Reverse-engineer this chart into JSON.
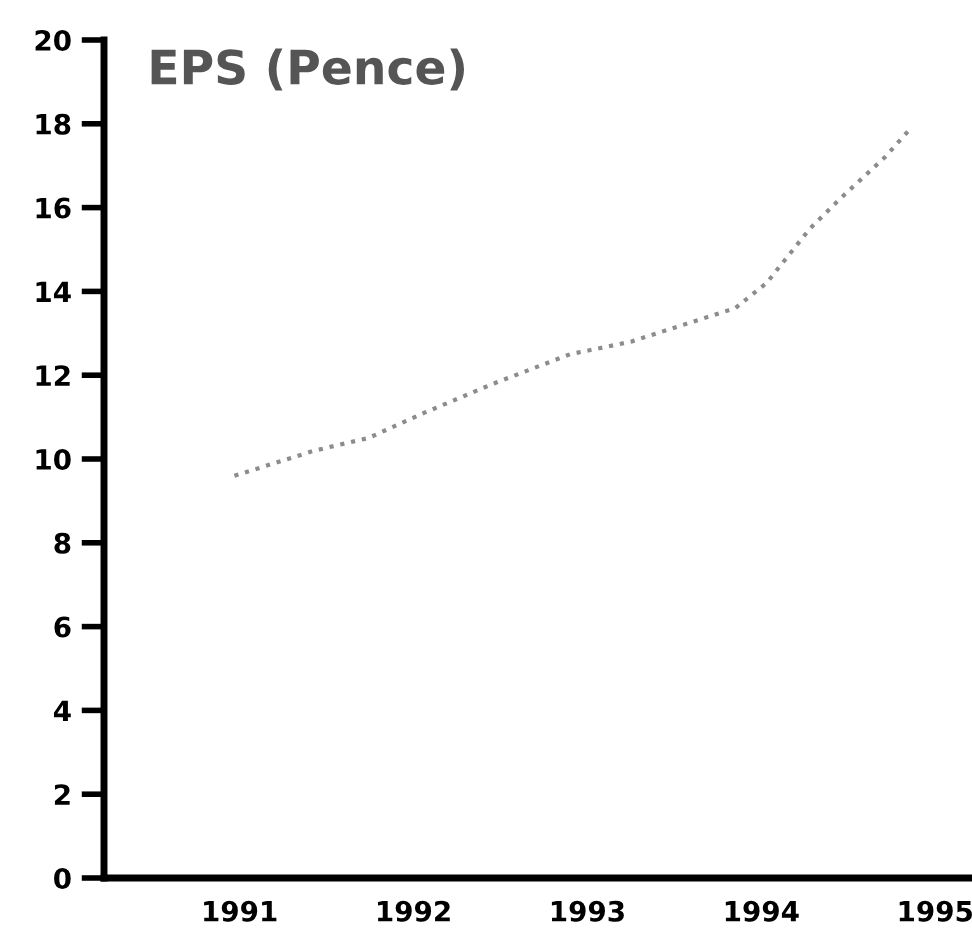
{
  "chart_data": {
    "type": "line",
    "title": "EPS (Pence)",
    "x": [
      1990.97,
      1991.43,
      1991.74,
      1992.06,
      1992.46,
      1992.9,
      1993.25,
      1993.85,
      1994.03,
      1994.28,
      1994.45,
      1994.71,
      1994.86
    ],
    "series": [
      {
        "color": "#8c8c8c",
        "values": [
          9.6,
          10.2,
          10.5,
          11.1,
          11.8,
          12.5,
          12.8,
          13.6,
          14.2,
          15.5,
          16.2,
          17.2,
          17.9
        ]
      }
    ],
    "xlim": [
      1990.22,
      1995.2
    ],
    "xticks": [
      1991,
      1992,
      1993,
      1994,
      1995
    ],
    "ylim": [
      0,
      20
    ],
    "yticks": [
      0,
      2,
      4,
      6,
      8,
      10,
      12,
      14,
      16,
      18,
      20
    ],
    "line_style": "dotted",
    "marker": "none",
    "grid": false,
    "legend": false
  }
}
